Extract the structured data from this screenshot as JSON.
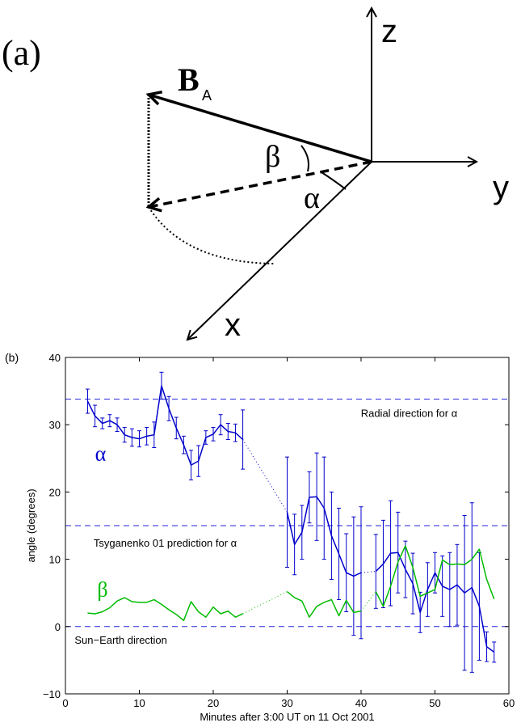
{
  "panel_a": {
    "label": "(a)",
    "axis_labels": {
      "z": "z",
      "y": "y",
      "x": "x"
    },
    "vector_label": "B",
    "vector_subscript": "A",
    "angle_labels": {
      "beta": "β",
      "alpha": "α"
    }
  },
  "panel_b": {
    "label": "(b)"
  },
  "chart_data": {
    "type": "line",
    "xlabel": "Minutes after 3:00 UT on 11 Oct 2001",
    "ylabel": "angle (degrees)",
    "xlim": [
      0,
      60
    ],
    "ylim": [
      -10,
      40
    ],
    "xticks": [
      0,
      10,
      20,
      30,
      40,
      50,
      60
    ],
    "yticks": [
      -10,
      0,
      10,
      20,
      30,
      40
    ],
    "grid": false,
    "colors": {
      "alpha": "#0000cc",
      "beta": "#00bb00",
      "reference": "#2222dd"
    },
    "reference_lines": [
      {
        "y": 33.8,
        "label": "Radial direction for α"
      },
      {
        "y": 15,
        "label": "Tsyganenko 01 prediction for α"
      },
      {
        "y": 0,
        "label": "Sun−Earth direction"
      }
    ],
    "series": [
      {
        "name": "α",
        "color": "#0000cc",
        "error_bars": true,
        "segments": [
          {
            "x": [
              3,
              4,
              5,
              6,
              7,
              8,
              9,
              10,
              11,
              12,
              13,
              14,
              15,
              16,
              17,
              18,
              19,
              20,
              21,
              22,
              23,
              24
            ],
            "y": [
              33.5,
              31.3,
              30.2,
              30.6,
              30.0,
              28.5,
              28.1,
              27.9,
              28.3,
              28.5,
              35.8,
              32.4,
              29.5,
              27.0,
              24.0,
              24.6,
              28.1,
              28.6,
              30.0,
              29.0,
              28.8,
              27.8
            ],
            "err": [
              1.8,
              1.6,
              0.8,
              0.9,
              1.0,
              1.1,
              1.3,
              1.2,
              1.3,
              1.9,
              2.0,
              1.8,
              1.6,
              1.3,
              2.2,
              2.3,
              1.0,
              1.0,
              1.5,
              1.2,
              1.3,
              4.4
            ]
          },
          {
            "x": [
              30,
              31,
              32,
              33,
              34,
              35,
              36,
              37,
              38,
              39,
              40
            ],
            "y": [
              17.0,
              12.2,
              14.0,
              19.2,
              19.3,
              17.6,
              13.5,
              10.8,
              8.0,
              7.5,
              8.0
            ],
            "err": [
              8.2,
              4.5,
              4.0,
              3.8,
              6.5,
              7.6,
              6.5,
              6.8,
              5.8,
              8.8,
              9.8
            ]
          },
          {
            "x": [
              42,
              43,
              44,
              45,
              46,
              47,
              48,
              49,
              50,
              51,
              52,
              53,
              54,
              55,
              56,
              57,
              58
            ],
            "y": [
              8.2,
              9.3,
              10.9,
              11.0,
              8.5,
              6.4,
              2.1,
              5.5,
              8.0,
              6.0,
              5.5,
              6.2,
              5.0,
              5.8,
              3.0,
              -3.0,
              -3.8
            ],
            "err": [
              5.5,
              6.5,
              7.8,
              6.0,
              4.2,
              4.5,
              3.0,
              4.0,
              3.0,
              4.5,
              5.5,
              6.0,
              11.5,
              12.6,
              8.0,
              2.2,
              1.5
            ]
          }
        ]
      },
      {
        "name": "β",
        "color": "#00bb00",
        "error_bars": false,
        "segments": [
          {
            "x": [
              3,
              4,
              5,
              6,
              7,
              8,
              9,
              10,
              11,
              12,
              13,
              14,
              15,
              16,
              17,
              18,
              19,
              20,
              21,
              22,
              23,
              24
            ],
            "y": [
              2.0,
              1.9,
              2.2,
              2.8,
              3.8,
              4.3,
              3.7,
              3.6,
              3.6,
              4.0,
              3.3,
              2.5,
              1.8,
              0.9,
              3.7,
              2.2,
              1.4,
              2.9,
              1.9,
              2.3,
              1.4,
              1.9
            ]
          },
          {
            "x": [
              30,
              31,
              32,
              33,
              34,
              35,
              36,
              37,
              38,
              39,
              40
            ],
            "y": [
              5.2,
              4.3,
              3.8,
              1.4,
              3.0,
              3.6,
              4.0,
              1.6,
              3.9,
              2.1,
              2.3
            ]
          },
          {
            "x": [
              42,
              43,
              44,
              45,
              46,
              47,
              48,
              49,
              50,
              51,
              52,
              53,
              54,
              55,
              56,
              57,
              58
            ],
            "y": [
              5.2,
              3.0,
              6.0,
              9.6,
              12.0,
              8.8,
              4.5,
              5.0,
              5.5,
              9.9,
              9.2,
              9.3,
              9.2,
              10.0,
              11.5,
              7.0,
              4.1
            ]
          }
        ]
      }
    ]
  }
}
